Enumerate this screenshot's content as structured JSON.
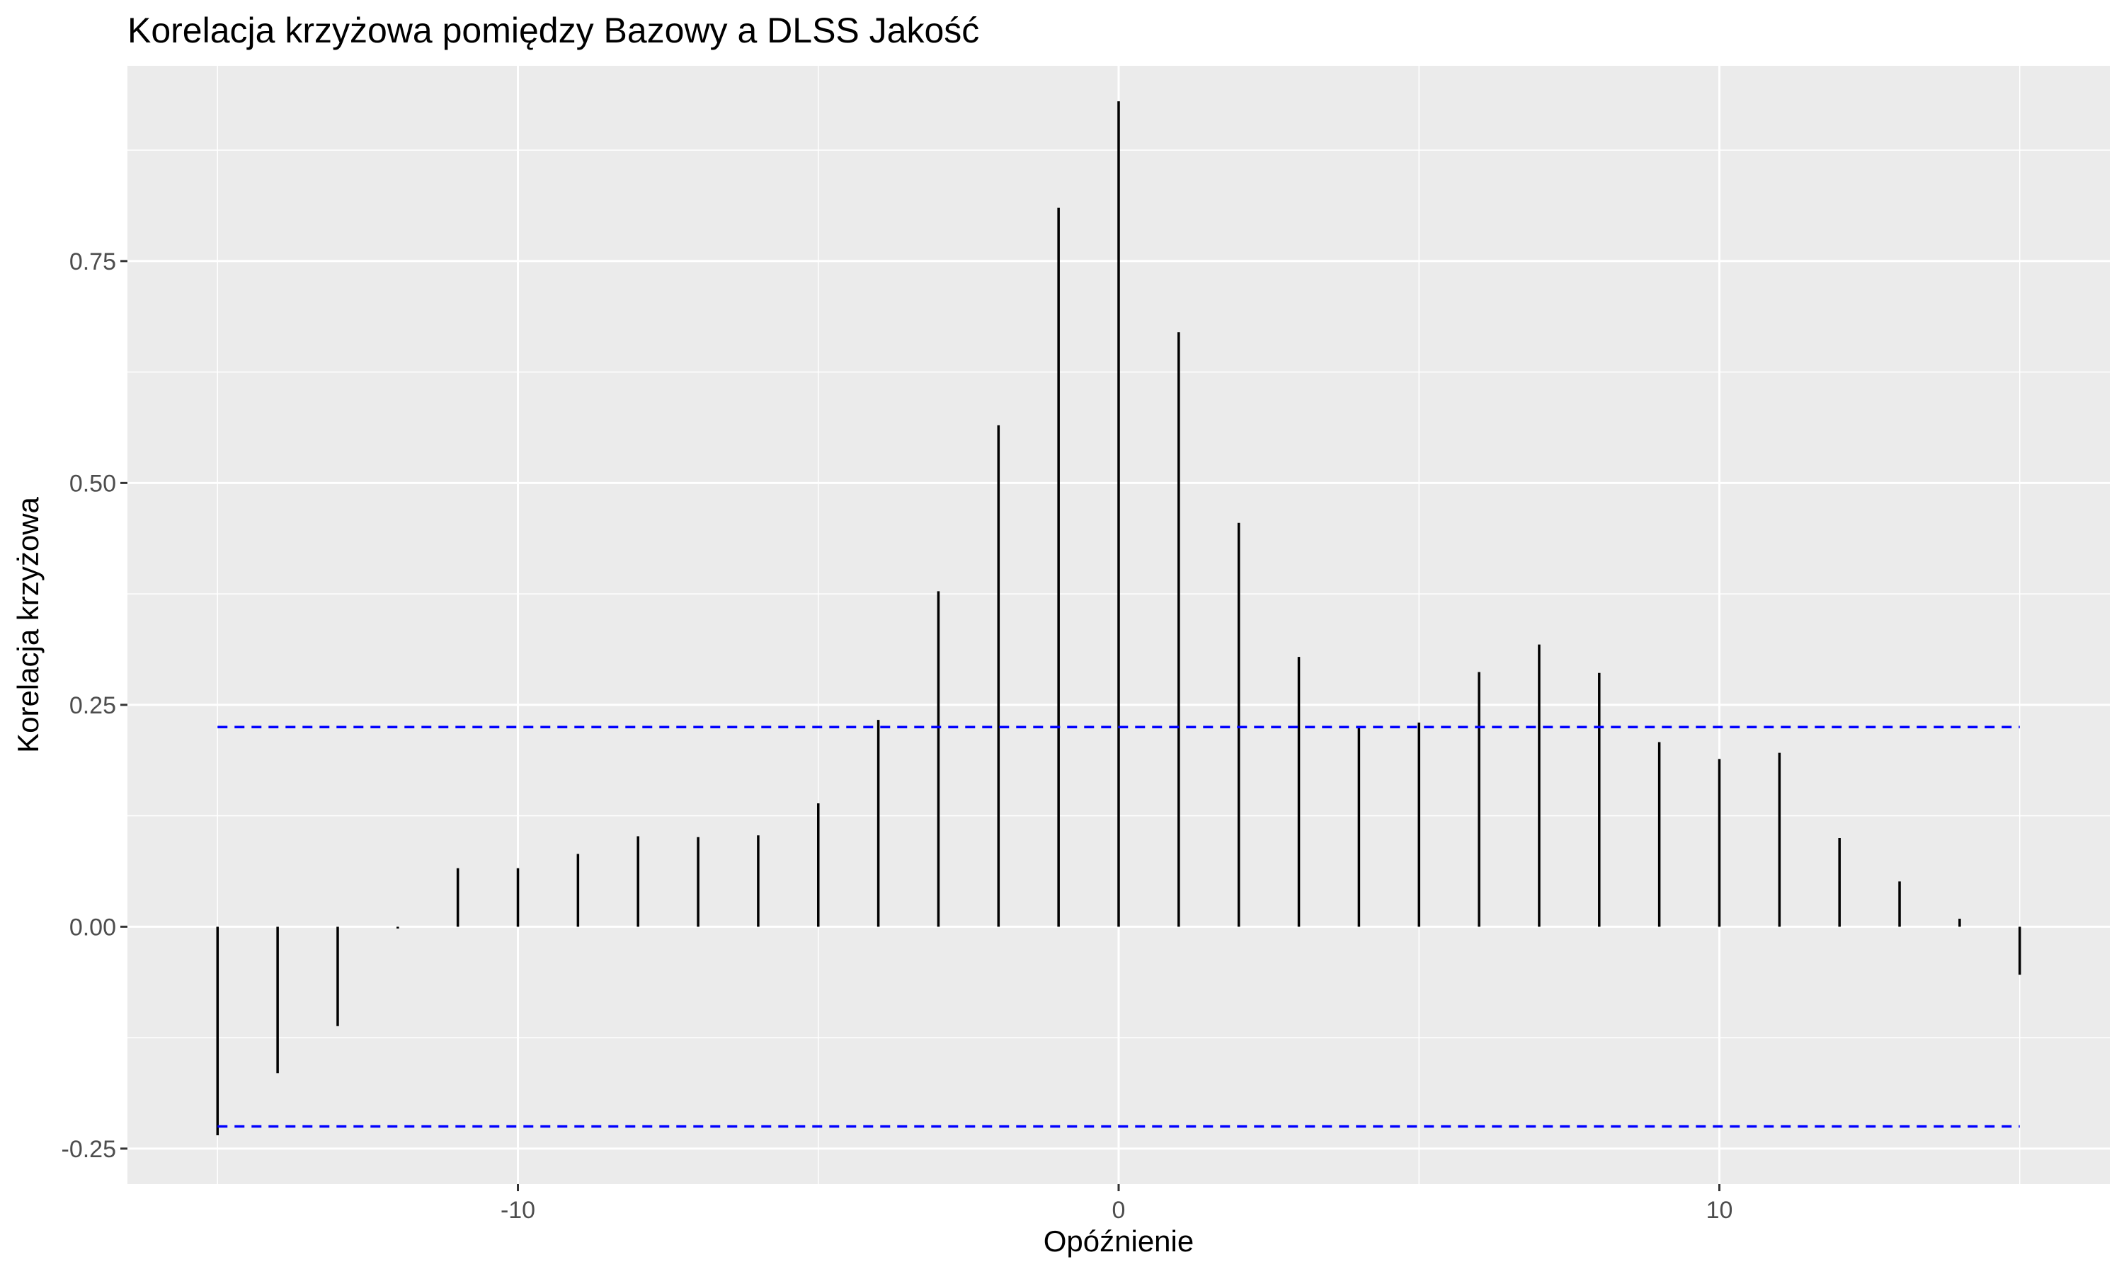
{
  "chart_data": {
    "type": "bar",
    "title": "Korelacja krzyżowa pomiędzy Bazowy a DLSS Jakość",
    "xlabel": "Opóźnienie",
    "ylabel": "Korelacja krzyżowa",
    "xlim": [
      -16.5,
      16.5
    ],
    "ylim": [
      -0.29,
      0.97
    ],
    "x_ticks": [
      -10,
      0,
      10
    ],
    "y_ticks": [
      -0.25,
      0.0,
      0.25,
      0.5,
      0.75
    ],
    "x_tick_labels": [
      "-10",
      "0",
      "10"
    ],
    "y_tick_labels": [
      "-0.25",
      "0.00",
      "0.25",
      "0.50",
      "0.75"
    ],
    "grid": true,
    "background_color": "#ebebeb",
    "bar_color": "#000000",
    "confidence_bound": 0.225,
    "confidence_color": "#0000ff",
    "lags": [
      -15,
      -14,
      -13,
      -12,
      -11,
      -10,
      -9,
      -8,
      -7,
      -6,
      -5,
      -4,
      -3,
      -2,
      -1,
      0,
      1,
      2,
      3,
      4,
      5,
      6,
      7,
      8,
      9,
      10,
      11,
      12,
      13,
      14,
      15
    ],
    "values": [
      -0.235,
      -0.165,
      -0.112,
      -0.002,
      0.066,
      0.066,
      0.082,
      0.102,
      0.101,
      0.103,
      0.139,
      0.233,
      0.378,
      0.565,
      0.81,
      0.93,
      0.67,
      0.455,
      0.304,
      0.225,
      0.23,
      0.287,
      0.318,
      0.286,
      0.208,
      0.189,
      0.196,
      0.1,
      0.051,
      0.009,
      -0.054
    ]
  }
}
